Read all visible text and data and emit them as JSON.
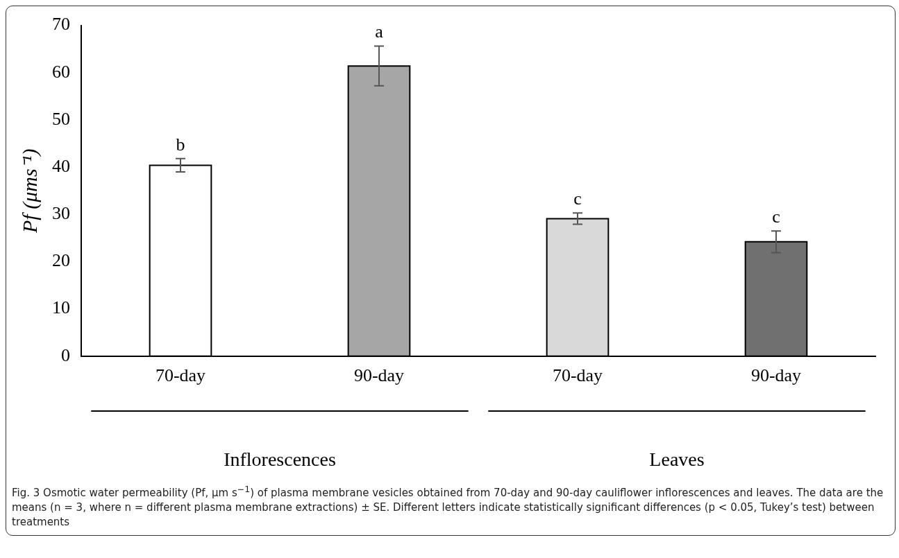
{
  "chart_data": {
    "type": "bar",
    "ylabel": "Pf (μms⁻¹)",
    "categories": [
      "70-day",
      "90-day",
      "70-day",
      "90-day"
    ],
    "values": [
      40.4,
      61.4,
      29.1,
      24.2
    ],
    "colors": [
      "#ffffff",
      "#a6a6a6",
      "#d9d9d9",
      "#707070"
    ],
    "errors": [
      1.4,
      4.2,
      1.2,
      2.3
    ],
    "value_labels": [
      "b",
      "a",
      "c",
      "c"
    ],
    "ylim": [
      0,
      70
    ],
    "yticks": [
      0,
      10,
      20,
      30,
      40,
      50,
      60,
      70
    ],
    "grid": false,
    "legend": false,
    "annotations": [
      "Inflorescences",
      "Leaves",
      "Fig. 3 Osmotic water permeability (Pf, μm s$^{−1}$) of plasma membrane vesicles obtained from 70-day and 90-day cauliflower inflorescences and leaves. The data are the means (n = 3, where n = different plasma membrane extractions) ± SE. Different letters indicate statistically significant differences (p < 0.05, Tukey’s test) between treatments"
    ]
  }
}
